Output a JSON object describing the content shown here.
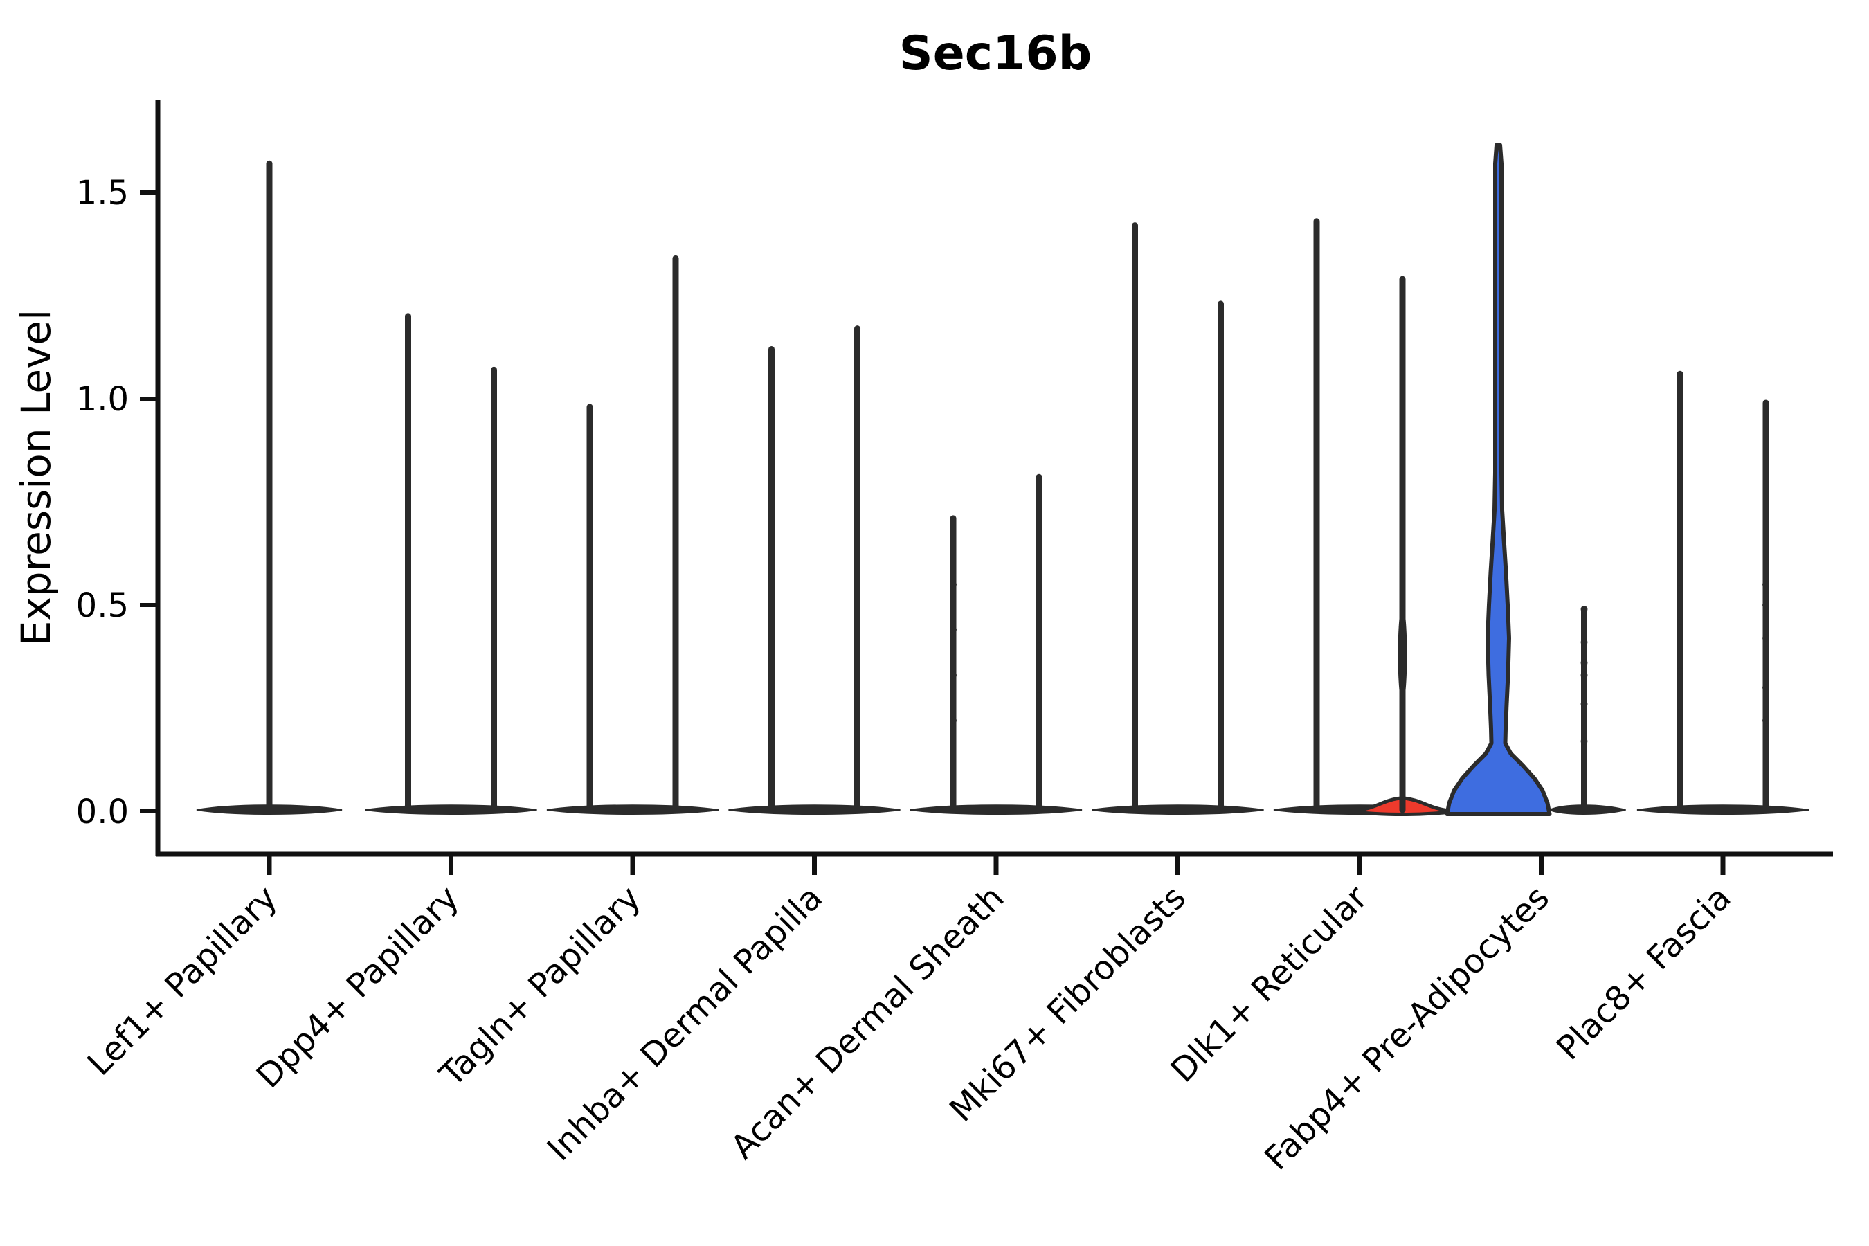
{
  "title": "Sec16b",
  "axes": {
    "ylabel": "Expression Level",
    "ytick_labels": [
      "0.0",
      "0.5",
      "1.0",
      "1.5"
    ]
  },
  "colors": {
    "ink": "#2b2b2b",
    "axis": "#111111",
    "text": "#000000",
    "red_violin": "#ee3a2c",
    "blue_violin": "#3e6de0",
    "background": "#ffffff"
  },
  "chart_data": {
    "type": "violin",
    "title": "Sec16b",
    "xlabel": "",
    "ylabel": "Expression Level",
    "ylim": [
      -0.1,
      1.72
    ],
    "yticks": [
      0.0,
      0.5,
      1.0,
      1.5
    ],
    "grid": false,
    "legend_position": "none",
    "categories": [
      "Lef1+ Papillary",
      "Dpp4+ Papillary",
      "Tagln+ Papillary",
      "Inhba+ Dermal Papilla",
      "Acan+ Dermal Sheath",
      "Mki67+ Fibroblasts",
      "Dlk1+ Reticular",
      "Fabp4+ Pre-Adipocytes",
      "Plac8+ Fascia"
    ],
    "description": "Most violins are near-zero flat bases with a thin spike to the max expression value; two violins per category except the first.",
    "series": [
      {
        "category": "Lef1+ Papillary",
        "violins": [
          {
            "group": 1,
            "max": 1.57,
            "fill": "none",
            "shape": "spike",
            "single_wide": true
          }
        ]
      },
      {
        "category": "Dpp4+ Papillary",
        "violins": [
          {
            "group": 1,
            "max": 1.2,
            "fill": "none",
            "shape": "spike"
          },
          {
            "group": 2,
            "max": 1.07,
            "fill": "none",
            "shape": "spike"
          }
        ]
      },
      {
        "category": "Tagln+ Papillary",
        "violins": [
          {
            "group": 1,
            "max": 0.98,
            "fill": "none",
            "shape": "spike"
          },
          {
            "group": 2,
            "max": 1.34,
            "fill": "none",
            "shape": "spike"
          }
        ]
      },
      {
        "category": "Inhba+ Dermal Papilla",
        "violins": [
          {
            "group": 1,
            "max": 1.12,
            "fill": "none",
            "shape": "spike"
          },
          {
            "group": 2,
            "max": 1.17,
            "fill": "none",
            "shape": "spike"
          }
        ]
      },
      {
        "category": "Acan+ Dermal Sheath",
        "violins": [
          {
            "group": 1,
            "max": 0.71,
            "fill": "none",
            "shape": "spike",
            "dots": [
              0.55,
              0.44,
              0.33,
              0.22
            ]
          },
          {
            "group": 2,
            "max": 0.81,
            "fill": "none",
            "shape": "spike",
            "dots": [
              0.62,
              0.5,
              0.4,
              0.28
            ]
          }
        ]
      },
      {
        "category": "Mki67+ Fibroblasts",
        "violins": [
          {
            "group": 1,
            "max": 1.42,
            "fill": "none",
            "shape": "spike"
          },
          {
            "group": 2,
            "max": 1.23,
            "fill": "none",
            "shape": "spike"
          }
        ]
      },
      {
        "category": "Dlk1+ Reticular",
        "violins": [
          {
            "group": 1,
            "max": 1.43,
            "fill": "none",
            "shape": "spike"
          },
          {
            "group": 2,
            "max": 1.29,
            "fill": "red",
            "shape": "flat-bump",
            "bump_peak_value": 0.032,
            "spike_bulge": [
              0.26,
              0.5
            ]
          }
        ]
      },
      {
        "category": "Fabp4+ Pre-Adipocytes",
        "violins": [
          {
            "group": 1,
            "max": 1.62,
            "fill": "blue",
            "shape": "bulged-violin",
            "belly_peak_value": 0.42
          },
          {
            "group": 2,
            "max": 0.49,
            "fill": "none",
            "shape": "spike",
            "dots": [
              0.49,
              0.41,
              0.36,
              0.33,
              0.26,
              0.17
            ]
          }
        ]
      },
      {
        "category": "Plac8+ Fascia",
        "violins": [
          {
            "group": 1,
            "max": 1.06,
            "fill": "none",
            "shape": "spike",
            "dots": [
              0.81,
              0.54,
              0.46,
              0.34,
              0.24
            ]
          },
          {
            "group": 2,
            "max": 0.99,
            "fill": "none",
            "shape": "spike",
            "dots": [
              0.55,
              0.5,
              0.42,
              0.3,
              0.22
            ]
          }
        ]
      }
    ]
  }
}
